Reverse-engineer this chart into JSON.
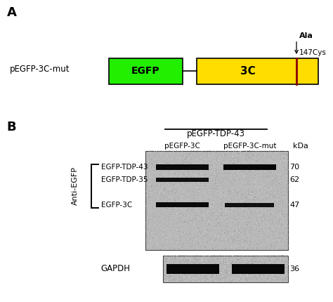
{
  "panel_A_label": "A",
  "panel_B_label": "B",
  "construct_label": "pEGFP-3C-mut",
  "egfp_color": "#22ee00",
  "egfp_label": "EGFP",
  "c3_color": "#ffdd00",
  "c3_label": "3C",
  "mutation_color": "#8B0000",
  "mutation_pos_label": "147Cys",
  "mutation_ala_label": "Ala",
  "bracket_label": "Anti-EGFP",
  "top_header": "pEGFP-TDP-43",
  "col1_label": "pEGFP-3C",
  "col2_label": "pEGFP-3C-mut",
  "kda_label": "kDa",
  "band_labels_left": [
    "EGFP-TDP-43",
    "EGFP-TDP-35",
    "EGFP-3C"
  ],
  "kda_values": [
    "70",
    "62",
    "47"
  ],
  "gapdh_label": "GAPDH",
  "gapdh_kda": "36",
  "bg_color": "#ffffff",
  "gel_bg_light": "#bbbbbb",
  "gel_bg_dark": "#999999",
  "band_color": "#080808"
}
